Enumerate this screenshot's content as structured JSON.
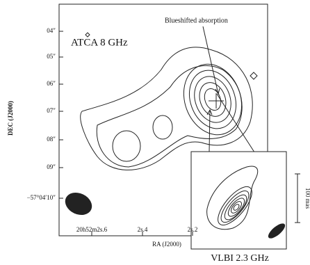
{
  "labels": {
    "atca": "ATCA 8 GHz",
    "absorption": "Blueshifted absorption",
    "vlbi": "VLBI 2.3 GHz",
    "dec_axis": "DEC (J2000)",
    "ra_axis": "RA (J2000)",
    "scale": "100 mas"
  },
  "y_ticks": [
    "04″",
    "05″",
    "06″",
    "07″",
    "08″",
    "09″",
    "−57°04′10″"
  ],
  "x_ticks": [
    "20h52m2s.6",
    "2s.4",
    "2s.2"
  ]
}
